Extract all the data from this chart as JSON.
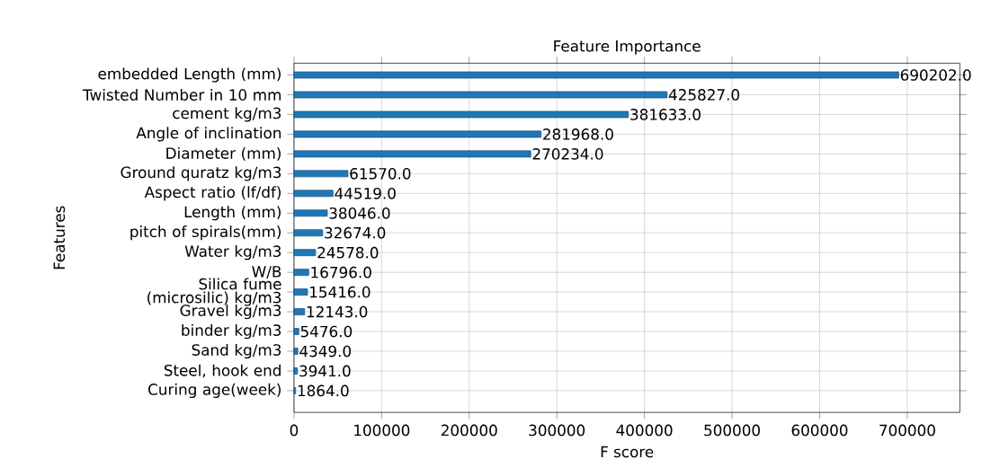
{
  "chart_data": {
    "type": "bar",
    "orientation": "horizontal",
    "title": "Feature Importance",
    "xlabel": "F score",
    "ylabel": "Features",
    "categories": [
      "embedded Length (mm)",
      "Twisted Number in 10 mm",
      "cement kg/m3",
      "Angle of inclination",
      "Diameter (mm)",
      "Ground quratz   kg/m3",
      "Aspect ratio (lf/df)",
      "Length (mm)",
      "pitch of spirals(mm)",
      "Water kg/m3",
      "W/B",
      "Silica fume (microsilic) kg/m3",
      "Gravel kg/m3",
      "binder kg/m3",
      "Sand kg/m3",
      "Steel, hook end",
      "Curing age(week)"
    ],
    "values": [
      690202,
      425827,
      381633,
      281968,
      270234,
      61570,
      44519,
      38046,
      32674,
      24578,
      16796,
      15416,
      12143,
      5476,
      4349,
      3941,
      1864
    ],
    "value_labels": [
      "690202.0",
      "425827.0",
      "381633.0",
      "281968.0",
      "270234.0",
      "61570.0",
      "44519.0",
      "38046.0",
      "32674.0",
      "24578.0",
      "16796.0",
      "15416.0",
      "12143.0",
      "5476.0",
      "4349.0",
      "3941.0",
      "1864.0"
    ],
    "color": "#1f77b4",
    "xlim": [
      0,
      760000
    ],
    "xticks": [
      0,
      100000,
      200000,
      300000,
      400000,
      500000,
      600000,
      700000
    ],
    "grid": true
  }
}
